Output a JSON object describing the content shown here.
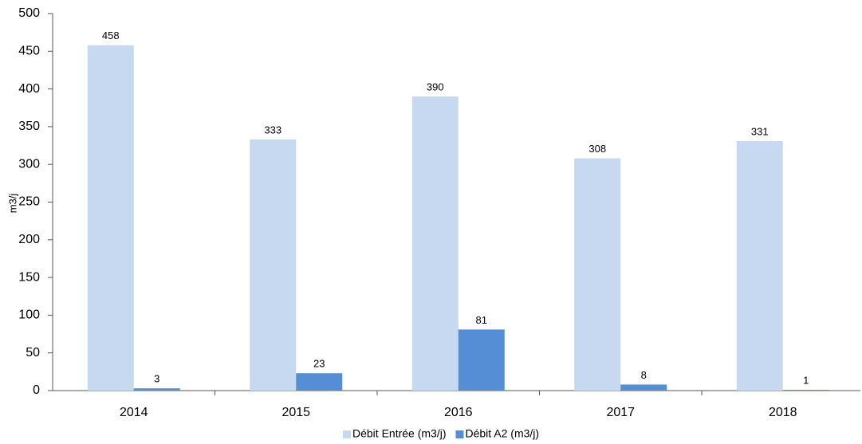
{
  "chart_data": {
    "type": "bar",
    "y_label": "m3/j",
    "categories": [
      "2014",
      "2015",
      "2016",
      "2017",
      "2018"
    ],
    "series": [
      {
        "name": "Débit Entrée (m3/j)",
        "color": "#c6d9f1",
        "values": [
          458,
          333,
          390,
          308,
          331
        ]
      },
      {
        "name": "Débit A2 (m3/j)",
        "color": "#558ed5",
        "values": [
          3,
          23,
          81,
          8,
          1
        ]
      }
    ],
    "ylim": [
      0,
      500
    ],
    "yticks": [
      0,
      50,
      100,
      150,
      200,
      250,
      300,
      350,
      400,
      450,
      500
    ],
    "legend": "bottom"
  }
}
